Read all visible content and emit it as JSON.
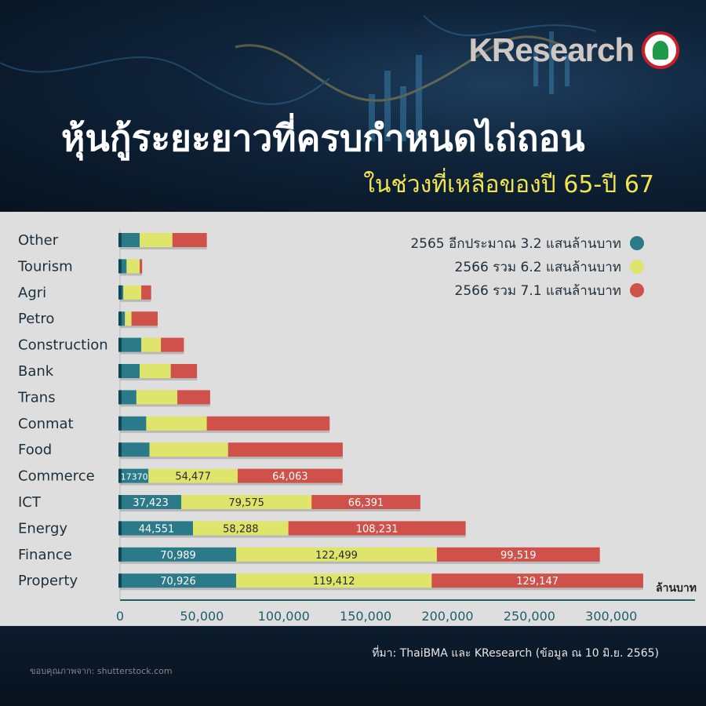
{
  "brand": {
    "logo_text": "KResearch",
    "logo_icon": "kasikorn-leaf-icon"
  },
  "header": {
    "title": "หุ้นกู้ระยะยาวที่ครบกำหนดไถ่ถอน",
    "subtitle": "ในช่วงที่เหลือของปี 65-ปี 67"
  },
  "footer": {
    "source": "ที่มา: ThaiBMA และ KResearch (ข้อมูล ณ 10 มิ.ย. 2565)",
    "credit": "ขอบคุณภาพจาก: shutterstock.com"
  },
  "colors": {
    "teal": "#2b7a8a",
    "yellow": "#dfe56a",
    "red": "#d0504a",
    "axis": "#1f5f6a"
  },
  "chart_data": {
    "type": "bar",
    "orientation": "horizontal",
    "stacked": true,
    "categories": [
      "Other",
      "Tourism",
      "Agri",
      "Petro",
      "Construction",
      "Bank",
      "Trans",
      "Conmat",
      "Food",
      "Commerce",
      "ICT",
      "Energy",
      "Finance",
      "Property"
    ],
    "series": [
      {
        "name": "2565 อีกประมาณ 3.2 แสนล้านบาท",
        "color": "#2b7a8a",
        "values": [
          12000,
          4000,
          2000,
          3000,
          13000,
          12000,
          10000,
          16000,
          18000,
          17370,
          37423,
          44551,
          70989,
          70926
        ],
        "labels": [
          "",
          "",
          "",
          "",
          "",
          "",
          "",
          "",
          "",
          "17370",
          "37,423",
          "44,551",
          "70,989",
          "70,926"
        ]
      },
      {
        "name": "2566 รวม 6.2 แสนล้านบาท",
        "color": "#dfe56a",
        "values": [
          20000,
          8000,
          11000,
          4000,
          12000,
          19000,
          25000,
          37000,
          48000,
          54477,
          79575,
          58288,
          122499,
          119412
        ],
        "labels": [
          "",
          "",
          "",
          "",
          "",
          "",
          "",
          "",
          "",
          "54,477",
          "79,575",
          "58,288",
          "122,499",
          "119,412"
        ]
      },
      {
        "name": "2566 รวม 7.1 แสนล้านบาท",
        "color": "#d0504a",
        "values": [
          21000,
          1500,
          6000,
          16000,
          14000,
          16000,
          20000,
          75000,
          70000,
          64063,
          66391,
          108231,
          99519,
          129147
        ],
        "labels": [
          "",
          "",
          "",
          "",
          "",
          "",
          "",
          "",
          "",
          "64,063",
          "66,391",
          "108,231",
          "99,519",
          "129,147"
        ]
      }
    ],
    "xlim": [
      0,
      320000
    ],
    "xticks": [
      0,
      50000,
      100000,
      150000,
      200000,
      250000,
      300000
    ],
    "xtick_labels": [
      "0",
      "50,000",
      "100,000",
      "150,000",
      "200,000",
      "250,000",
      "300,000"
    ],
    "unit_label": "ล้านบาท",
    "legend_position": "top-right",
    "grid": false
  }
}
